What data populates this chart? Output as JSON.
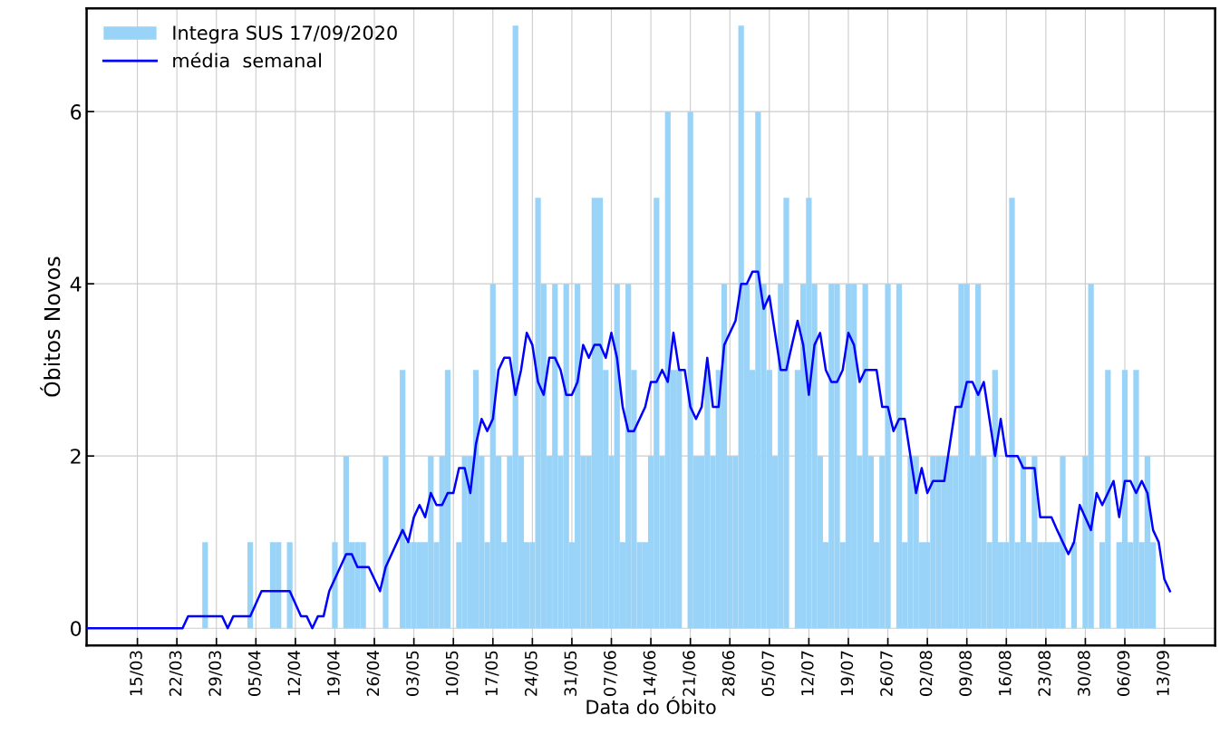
{
  "chart_data": {
    "type": "bar",
    "xlabel": "Data do Óbito",
    "ylabel": "Óbitos Novos",
    "x": [
      "2020-03-06",
      "2020-03-07",
      "2020-03-08",
      "2020-03-09",
      "2020-03-10",
      "2020-03-11",
      "2020-03-12",
      "2020-03-13",
      "2020-03-14",
      "2020-03-15",
      "2020-03-16",
      "2020-03-17",
      "2020-03-18",
      "2020-03-19",
      "2020-03-20",
      "2020-03-21",
      "2020-03-22",
      "2020-03-23",
      "2020-03-24",
      "2020-03-25",
      "2020-03-26",
      "2020-03-27",
      "2020-03-28",
      "2020-03-29",
      "2020-03-30",
      "2020-03-31",
      "2020-04-01",
      "2020-04-02",
      "2020-04-03",
      "2020-04-04",
      "2020-04-05",
      "2020-04-06",
      "2020-04-07",
      "2020-04-08",
      "2020-04-09",
      "2020-04-10",
      "2020-04-11",
      "2020-04-12",
      "2020-04-13",
      "2020-04-14",
      "2020-04-15",
      "2020-04-16",
      "2020-04-17",
      "2020-04-18",
      "2020-04-19",
      "2020-04-20",
      "2020-04-21",
      "2020-04-22",
      "2020-04-23",
      "2020-04-24",
      "2020-04-25",
      "2020-04-26",
      "2020-04-27",
      "2020-04-28",
      "2020-04-29",
      "2020-04-30",
      "2020-05-01",
      "2020-05-02",
      "2020-05-03",
      "2020-05-04",
      "2020-05-05",
      "2020-05-06",
      "2020-05-07",
      "2020-05-08",
      "2020-05-09",
      "2020-05-10",
      "2020-05-11",
      "2020-05-12",
      "2020-05-13",
      "2020-05-14",
      "2020-05-15",
      "2020-05-16",
      "2020-05-17",
      "2020-05-18",
      "2020-05-19",
      "2020-05-20",
      "2020-05-21",
      "2020-05-22",
      "2020-05-23",
      "2020-05-24",
      "2020-05-25",
      "2020-05-26",
      "2020-05-27",
      "2020-05-28",
      "2020-05-29",
      "2020-05-30",
      "2020-05-31",
      "2020-06-01",
      "2020-06-02",
      "2020-06-03",
      "2020-06-04",
      "2020-06-05",
      "2020-06-06",
      "2020-06-07",
      "2020-06-08",
      "2020-06-09",
      "2020-06-10",
      "2020-06-11",
      "2020-06-12",
      "2020-06-13",
      "2020-06-14",
      "2020-06-15",
      "2020-06-16",
      "2020-06-17",
      "2020-06-18",
      "2020-06-19",
      "2020-06-20",
      "2020-06-21",
      "2020-06-22",
      "2020-06-23",
      "2020-06-24",
      "2020-06-25",
      "2020-06-26",
      "2020-06-27",
      "2020-06-28",
      "2020-06-29",
      "2020-06-30",
      "2020-07-01",
      "2020-07-02",
      "2020-07-03",
      "2020-07-04",
      "2020-07-05",
      "2020-07-06",
      "2020-07-07",
      "2020-07-08",
      "2020-07-09",
      "2020-07-10",
      "2020-07-11",
      "2020-07-12",
      "2020-07-13",
      "2020-07-14",
      "2020-07-15",
      "2020-07-16",
      "2020-07-17",
      "2020-07-18",
      "2020-07-19",
      "2020-07-20",
      "2020-07-21",
      "2020-07-22",
      "2020-07-23",
      "2020-07-24",
      "2020-07-25",
      "2020-07-26",
      "2020-07-27",
      "2020-07-28",
      "2020-07-29",
      "2020-07-30",
      "2020-07-31",
      "2020-08-01",
      "2020-08-02",
      "2020-08-03",
      "2020-08-04",
      "2020-08-05",
      "2020-08-06",
      "2020-08-07",
      "2020-08-08",
      "2020-08-09",
      "2020-08-10",
      "2020-08-11",
      "2020-08-12",
      "2020-08-13",
      "2020-08-14",
      "2020-08-15",
      "2020-08-16",
      "2020-08-17",
      "2020-08-18",
      "2020-08-19",
      "2020-08-20",
      "2020-08-21",
      "2020-08-22",
      "2020-08-23",
      "2020-08-24",
      "2020-08-25",
      "2020-08-26",
      "2020-08-27",
      "2020-08-28",
      "2020-08-29",
      "2020-08-30",
      "2020-08-31",
      "2020-09-01",
      "2020-09-02",
      "2020-09-03",
      "2020-09-04",
      "2020-09-05",
      "2020-09-06",
      "2020-09-07",
      "2020-09-08",
      "2020-09-09",
      "2020-09-10",
      "2020-09-11"
    ],
    "series": [
      {
        "name": "Integra SUS 17/09/2020",
        "color": "#99d3f8",
        "values": [
          0,
          0,
          0,
          0,
          0,
          0,
          0,
          0,
          0,
          0,
          0,
          0,
          0,
          0,
          0,
          0,
          0,
          0,
          0,
          0,
          0,
          1,
          0,
          0,
          0,
          0,
          0,
          0,
          0,
          1,
          0,
          0,
          0,
          1,
          1,
          0,
          1,
          0,
          0,
          0,
          0,
          0,
          0,
          0,
          1,
          0,
          2,
          1,
          1,
          1,
          0,
          0,
          0,
          2,
          0,
          0,
          3,
          1,
          1,
          1,
          1,
          2,
          1,
          2,
          3,
          0,
          1,
          2,
          2,
          3,
          2,
          1,
          4,
          2,
          1,
          2,
          7,
          2,
          1,
          1,
          5,
          4,
          2,
          4,
          2,
          4,
          1,
          4,
          2,
          2,
          5,
          5,
          3,
          2,
          4,
          1,
          4,
          3,
          1,
          1,
          2,
          5,
          2,
          6,
          3,
          3,
          0,
          6,
          2,
          2,
          3,
          2,
          3,
          4,
          2,
          2,
          7,
          4,
          3,
          6,
          4,
          3,
          2,
          4,
          5,
          0,
          3,
          4,
          5,
          4,
          2,
          1,
          4,
          4,
          1,
          4,
          4,
          2,
          4,
          2,
          1,
          2,
          4,
          0,
          4,
          1,
          2,
          2,
          1,
          1,
          2,
          2,
          2,
          2,
          2,
          4,
          4,
          2,
          4,
          2,
          1,
          3,
          1,
          1,
          5,
          1,
          2,
          1,
          2,
          1,
          1,
          1,
          1,
          2,
          0,
          1,
          0,
          2,
          4,
          0,
          1,
          3,
          0,
          1,
          3,
          1,
          3,
          1,
          2,
          1
        ]
      },
      {
        "name": "média  semanal",
        "type": "line",
        "color": "#0000ff",
        "x": [
          "2020-03-06",
          "2020-03-23",
          "2020-03-24",
          "2020-03-30",
          "2020-03-31",
          "2020-04-01",
          "2020-04-04",
          "2020-04-06",
          "2020-04-11",
          "2020-04-13",
          "2020-04-14",
          "2020-04-15",
          "2020-04-16",
          "2020-04-17",
          "2020-04-18",
          "2020-04-21",
          "2020-04-22",
          "2020-04-23",
          "2020-04-25",
          "2020-04-27",
          "2020-04-28",
          "2020-05-01",
          "2020-05-02",
          "2020-05-03",
          "2020-05-04",
          "2020-05-05",
          "2020-05-06",
          "2020-05-07",
          "2020-05-08",
          "2020-05-09",
          "2020-05-10",
          "2020-05-11",
          "2020-05-12",
          "2020-05-13",
          "2020-05-14",
          "2020-05-15",
          "2020-05-16",
          "2020-05-17",
          "2020-05-18",
          "2020-05-19",
          "2020-05-20",
          "2020-05-21",
          "2020-05-22",
          "2020-05-23",
          "2020-05-24",
          "2020-05-25",
          "2020-05-26",
          "2020-05-27",
          "2020-05-28",
          "2020-05-29",
          "2020-05-30",
          "2020-05-31",
          "2020-06-01",
          "2020-06-02",
          "2020-06-03",
          "2020-06-04",
          "2020-06-05",
          "2020-06-06",
          "2020-06-07",
          "2020-06-08",
          "2020-06-09",
          "2020-06-10",
          "2020-06-11",
          "2020-06-13",
          "2020-06-14",
          "2020-06-15",
          "2020-06-16",
          "2020-06-17",
          "2020-06-18",
          "2020-06-19",
          "2020-06-20",
          "2020-06-21",
          "2020-06-22",
          "2020-06-23",
          "2020-06-24",
          "2020-06-25",
          "2020-06-26",
          "2020-06-27",
          "2020-06-29",
          "2020-06-30",
          "2020-07-01",
          "2020-07-02",
          "2020-07-03",
          "2020-07-04",
          "2020-07-05",
          "2020-07-06",
          "2020-07-07",
          "2020-07-08",
          "2020-07-09",
          "2020-07-10",
          "2020-07-11",
          "2020-07-12",
          "2020-07-13",
          "2020-07-14",
          "2020-07-15",
          "2020-07-16",
          "2020-07-17",
          "2020-07-18",
          "2020-07-19",
          "2020-07-20",
          "2020-07-21",
          "2020-07-22",
          "2020-07-24",
          "2020-07-25",
          "2020-07-26",
          "2020-07-27",
          "2020-07-28",
          "2020-07-29",
          "2020-07-30",
          "2020-07-31",
          "2020-08-01",
          "2020-08-02",
          "2020-08-03",
          "2020-08-05",
          "2020-08-07",
          "2020-08-08",
          "2020-08-09",
          "2020-08-10",
          "2020-08-11",
          "2020-08-12",
          "2020-08-14",
          "2020-08-15",
          "2020-08-16",
          "2020-08-18",
          "2020-08-19",
          "2020-08-21",
          "2020-08-22",
          "2020-08-24",
          "2020-08-25",
          "2020-08-27",
          "2020-08-28",
          "2020-08-29",
          "2020-08-31",
          "2020-09-01",
          "2020-09-02",
          "2020-09-04",
          "2020-09-05",
          "2020-09-06",
          "2020-09-07",
          "2020-09-08",
          "2020-09-09",
          "2020-09-10",
          "2020-09-11",
          "2020-09-12",
          "2020-09-13",
          "2020-09-14"
        ],
        "values": [
          0,
          0,
          0.14,
          0.14,
          0,
          0.14,
          0.14,
          0.43,
          0.43,
          0.14,
          0.14,
          0,
          0.14,
          0.14,
          0.43,
          0.86,
          0.86,
          0.71,
          0.71,
          0.43,
          0.71,
          1.14,
          1.0,
          1.29,
          1.43,
          1.29,
          1.57,
          1.43,
          1.43,
          1.57,
          1.57,
          1.86,
          1.86,
          1.57,
          2.14,
          2.43,
          2.29,
          2.43,
          3.0,
          3.14,
          3.14,
          2.71,
          3.0,
          3.43,
          3.29,
          2.86,
          2.71,
          3.14,
          3.14,
          3.0,
          2.71,
          2.71,
          2.86,
          3.29,
          3.14,
          3.29,
          3.29,
          3.14,
          3.43,
          3.14,
          2.57,
          2.29,
          2.29,
          2.57,
          2.86,
          2.86,
          3.0,
          2.86,
          3.43,
          3.0,
          3.0,
          2.57,
          2.43,
          2.57,
          3.14,
          2.57,
          2.57,
          3.29,
          3.57,
          4.0,
          4.0,
          4.14,
          4.14,
          3.71,
          3.86,
          3.43,
          3.0,
          3.0,
          3.29,
          3.57,
          3.29,
          2.71,
          3.29,
          3.43,
          3.0,
          2.86,
          2.86,
          3.0,
          3.43,
          3.29,
          2.86,
          3.0,
          3.0,
          2.57,
          2.57,
          2.29,
          2.43,
          2.43,
          2.0,
          1.57,
          1.86,
          1.57,
          1.71,
          1.71,
          2.57,
          2.57,
          2.86,
          2.86,
          2.71,
          2.86,
          2.0,
          2.43,
          2.0,
          2.0,
          1.86,
          1.86,
          1.29,
          1.29,
          1.14,
          0.86,
          1.0,
          1.43,
          1.14,
          1.57,
          1.43,
          1.71,
          1.29,
          1.71,
          1.71,
          1.57,
          1.71,
          1.57,
          1.14,
          1.0,
          0.57,
          0.43
        ]
      }
    ],
    "xlim": [
      "2020-03-06",
      "2020-09-22"
    ],
    "xticks": [
      {
        "value": "2020-03-15",
        "label": "15/03"
      },
      {
        "value": "2020-03-22",
        "label": "22/03"
      },
      {
        "value": "2020-03-29",
        "label": "29/03"
      },
      {
        "value": "2020-04-05",
        "label": "05/04"
      },
      {
        "value": "2020-04-12",
        "label": "12/04"
      },
      {
        "value": "2020-04-19",
        "label": "19/04"
      },
      {
        "value": "2020-04-26",
        "label": "26/04"
      },
      {
        "value": "2020-05-03",
        "label": "03/05"
      },
      {
        "value": "2020-05-10",
        "label": "10/05"
      },
      {
        "value": "2020-05-17",
        "label": "17/05"
      },
      {
        "value": "2020-05-24",
        "label": "24/05"
      },
      {
        "value": "2020-05-31",
        "label": "31/05"
      },
      {
        "value": "2020-06-07",
        "label": "07/06"
      },
      {
        "value": "2020-06-14",
        "label": "14/06"
      },
      {
        "value": "2020-06-21",
        "label": "21/06"
      },
      {
        "value": "2020-06-28",
        "label": "28/06"
      },
      {
        "value": "2020-07-05",
        "label": "05/07"
      },
      {
        "value": "2020-07-12",
        "label": "12/07"
      },
      {
        "value": "2020-07-19",
        "label": "19/07"
      },
      {
        "value": "2020-07-26",
        "label": "26/07"
      },
      {
        "value": "2020-08-02",
        "label": "02/08"
      },
      {
        "value": "2020-08-09",
        "label": "09/08"
      },
      {
        "value": "2020-08-16",
        "label": "16/08"
      },
      {
        "value": "2020-08-23",
        "label": "23/08"
      },
      {
        "value": "2020-08-30",
        "label": "30/08"
      },
      {
        "value": "2020-09-06",
        "label": "06/09"
      },
      {
        "value": "2020-09-13",
        "label": "13/09"
      }
    ],
    "ylim": [
      -0.2,
      7.2
    ],
    "yticks": [
      0,
      2,
      4,
      6
    ],
    "grid": true,
    "legend": "top left"
  }
}
